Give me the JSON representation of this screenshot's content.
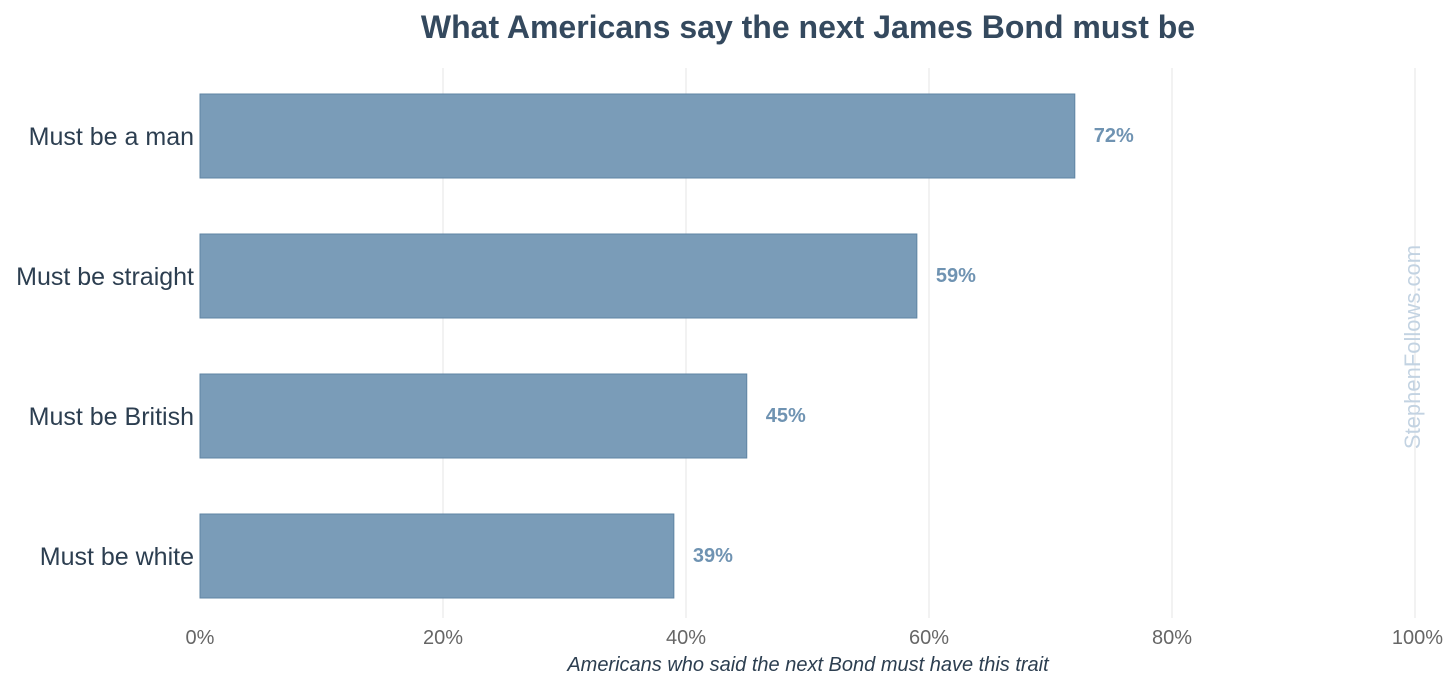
{
  "chart_data": {
    "type": "bar",
    "orientation": "horizontal",
    "title": "What Americans say the next James Bond must be",
    "xlabel": "Americans who said the next Bond must have this trait",
    "ylabel": "",
    "categories": [
      "Must be a man",
      "Must be straight",
      "Must be British",
      "Must be white"
    ],
    "values": [
      72,
      59,
      45,
      39
    ],
    "value_labels": [
      "72%",
      "59%",
      "45%",
      "39%"
    ],
    "xlim": [
      0,
      100
    ],
    "xticks": [
      0,
      20,
      40,
      60,
      80,
      100
    ],
    "xtick_labels": [
      "0%",
      "20%",
      "40%",
      "60%",
      "80%",
      "100%"
    ],
    "grid": "vertical",
    "legend": "none"
  },
  "watermark": "StephenFollows.com",
  "colors": {
    "bar": "#7a9cb8",
    "bar_edge": "#5f84a3",
    "value_label": "#6f93b2",
    "title": "#34495e",
    "category_label": "#2c3e50",
    "tick_label": "#666666",
    "grid": "#e6e6e6",
    "watermark": "#c3d3e2"
  }
}
